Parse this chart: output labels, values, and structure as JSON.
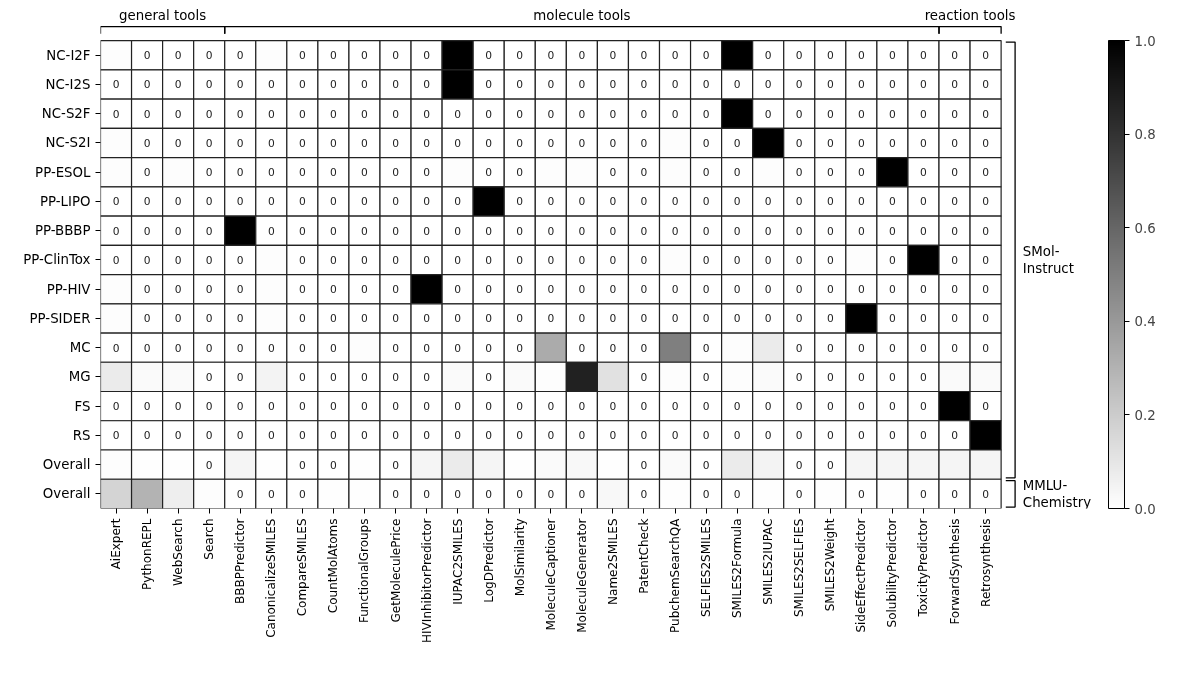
{
  "chart_data": {
    "type": "heatmap",
    "categories": [
      "AiExpert",
      "PythonREPL",
      "WebSearch",
      "Search",
      "BBBPPredictor",
      "CanonicalizeSMILES",
      "CompareSMILES",
      "CountMolAtoms",
      "FunctionalGroups",
      "GetMoleculePrice",
      "HIVInhibitorPredictor",
      "IUPAC2SMILES",
      "LogDPredictor",
      "MolSimilarity",
      "MoleculeCaptioner",
      "MoleculeGenerator",
      "Name2SMILES",
      "PatentCheck",
      "PubchemSearchQA",
      "SELFIES2SMILES",
      "SMILES2Formula",
      "SMILES2IUPAC",
      "SMILES2SELFIES",
      "SMILES2Weight",
      "SideEffectPredictor",
      "SolubilityPredictor",
      "ToxicityPredictor",
      "ForwardSynthesis",
      "Retrosynthesis"
    ],
    "y_categories": [
      "NC-I2F",
      "NC-I2S",
      "NC-S2F",
      "NC-S2I",
      "PP-ESOL",
      "PP-LIPO",
      "PP-BBBP",
      "PP-ClinTox",
      "PP-HIV",
      "PP-SIDER",
      "MC",
      "MG",
      "FS",
      "RS",
      "Overall",
      "Overall"
    ],
    "cells": [
      [
        0.01,
        0,
        0,
        0,
        0,
        0.01,
        0,
        0,
        0,
        0,
        0,
        1,
        0,
        0,
        0,
        0,
        0,
        0,
        0,
        0,
        1,
        0,
        0,
        0,
        0,
        0,
        0,
        0,
        0
      ],
      [
        0,
        0,
        0,
        0,
        0,
        0,
        0,
        0,
        0,
        0,
        0,
        1,
        0,
        0,
        0,
        0,
        0,
        0,
        0,
        0,
        0,
        0,
        0,
        0,
        0,
        0,
        0,
        0,
        0
      ],
      [
        0,
        0,
        0,
        0,
        0,
        0,
        0,
        0,
        0,
        0,
        0,
        0,
        0,
        0,
        0,
        0,
        0,
        0,
        0,
        0,
        1,
        0,
        0,
        0,
        0,
        0,
        0,
        0,
        0
      ],
      [
        0.01,
        0,
        0,
        0,
        0,
        0,
        0,
        0,
        0,
        0,
        0,
        0,
        0,
        0,
        0,
        0,
        0,
        0,
        0.01,
        0,
        0,
        1,
        0,
        0,
        0,
        0,
        0,
        0,
        0
      ],
      [
        0.01,
        0,
        0.01,
        0,
        0,
        0,
        0,
        0,
        0,
        0,
        0,
        0.01,
        0,
        0,
        0.01,
        0.01,
        0,
        0,
        0.01,
        0,
        0,
        0.01,
        0,
        0,
        0,
        1,
        0,
        0,
        0
      ],
      [
        0,
        0,
        0,
        0,
        0,
        0,
        0,
        0,
        0,
        0,
        0,
        0,
        1,
        0,
        0,
        0,
        0,
        0,
        0,
        0,
        0,
        0,
        0,
        0,
        0,
        0,
        0,
        0,
        0
      ],
      [
        0,
        0,
        0,
        0,
        1,
        0,
        0,
        0,
        0,
        0,
        0,
        0,
        0,
        0,
        0,
        0,
        0,
        0,
        0,
        0,
        0,
        0,
        0,
        0,
        0,
        0,
        0,
        0,
        0
      ],
      [
        0,
        0,
        0,
        0,
        0,
        0.01,
        0,
        0,
        0,
        0,
        0,
        0,
        0,
        0,
        0,
        0,
        0,
        0,
        0.01,
        0,
        0,
        0,
        0,
        0,
        0.01,
        0,
        1,
        0,
        0
      ],
      [
        0.01,
        0,
        0,
        0,
        0,
        0.01,
        0,
        0,
        0,
        0,
        1,
        0,
        0,
        0,
        0,
        0,
        0,
        0,
        0,
        0,
        0,
        0,
        0,
        0,
        0,
        0,
        0,
        0,
        0
      ],
      [
        0.01,
        0,
        0,
        0,
        0,
        0.01,
        0,
        0,
        0,
        0,
        0,
        0,
        0,
        0,
        0,
        0,
        0,
        0,
        0,
        0,
        0,
        0,
        0,
        0,
        1,
        0,
        0,
        0,
        0
      ],
      [
        0,
        0,
        0,
        0,
        0,
        0,
        0,
        0,
        0.01,
        0,
        0,
        0,
        0,
        0,
        0.33,
        0,
        0,
        0,
        0.5,
        0,
        0.01,
        0.08,
        0,
        0,
        0,
        0,
        0,
        0,
        0
      ],
      [
        0.08,
        0.02,
        0.02,
        0,
        0,
        0.05,
        0,
        0,
        0,
        0,
        0,
        0.02,
        0,
        0.02,
        0.01,
        0.87,
        0.12,
        0,
        0.01,
        0,
        0.01,
        0.02,
        0,
        0,
        0,
        0,
        0,
        0.02,
        0.02
      ],
      [
        0,
        0,
        0,
        0,
        0,
        0,
        0,
        0,
        0,
        0,
        0,
        0,
        0,
        0,
        0,
        0,
        0,
        0,
        0,
        0,
        0,
        0,
        0,
        0,
        0,
        0,
        0,
        1,
        0
      ],
      [
        0,
        0,
        0,
        0,
        0,
        0,
        0,
        0,
        0,
        0,
        0,
        0,
        0,
        0,
        0,
        0,
        0,
        0,
        0,
        0,
        0,
        0,
        0,
        0,
        0,
        0,
        0,
        0,
        1
      ],
      [
        0.01,
        0.005,
        0.005,
        0,
        0.04,
        0.005,
        0,
        0,
        0.005,
        0,
        0.04,
        0.08,
        0.04,
        0.005,
        0.02,
        0.03,
        0.005,
        0,
        0.02,
        0,
        0.08,
        0.05,
        0,
        0,
        0.04,
        0.04,
        0.04,
        0.04,
        0.04
      ],
      [
        0.17,
        0.3,
        0.07,
        0.01,
        0,
        0,
        0,
        0.005,
        0.005,
        0,
        0,
        0,
        0,
        0,
        0,
        0,
        0.03,
        0,
        0.005,
        0,
        0,
        0.005,
        0,
        0.005,
        0,
        0.005,
        0,
        0,
        0
      ]
    ],
    "cell_labels": [
      [
        null,
        "0",
        "0",
        "0",
        "0",
        null,
        "0",
        "0",
        "0",
        "0",
        "0",
        null,
        "0",
        "0",
        "0",
        "0",
        "0",
        "0",
        "0",
        "0",
        null,
        "0",
        "0",
        "0",
        "0",
        "0",
        "0",
        "0",
        "0"
      ],
      [
        "0",
        "0",
        "0",
        "0",
        "0",
        "0",
        "0",
        "0",
        "0",
        "0",
        "0",
        null,
        "0",
        "0",
        "0",
        "0",
        "0",
        "0",
        "0",
        "0",
        "0",
        "0",
        "0",
        "0",
        "0",
        "0",
        "0",
        "0",
        "0"
      ],
      [
        "0",
        "0",
        "0",
        "0",
        "0",
        "0",
        "0",
        "0",
        "0",
        "0",
        "0",
        "0",
        "0",
        "0",
        "0",
        "0",
        "0",
        "0",
        "0",
        "0",
        null,
        "0",
        "0",
        "0",
        "0",
        "0",
        "0",
        "0",
        "0"
      ],
      [
        null,
        "0",
        "0",
        "0",
        "0",
        "0",
        "0",
        "0",
        "0",
        "0",
        "0",
        "0",
        "0",
        "0",
        "0",
        "0",
        "0",
        "0",
        null,
        "0",
        "0",
        null,
        "0",
        "0",
        "0",
        "0",
        "0",
        "0",
        "0"
      ],
      [
        null,
        "0",
        null,
        "0",
        "0",
        "0",
        "0",
        "0",
        "0",
        "0",
        "0",
        null,
        "0",
        "0",
        null,
        null,
        "0",
        "0",
        null,
        "0",
        "0",
        null,
        "0",
        "0",
        "0",
        null,
        "0",
        "0",
        "0"
      ],
      [
        "0",
        "0",
        "0",
        "0",
        "0",
        "0",
        "0",
        "0",
        "0",
        "0",
        "0",
        "0",
        null,
        "0",
        "0",
        "0",
        "0",
        "0",
        "0",
        "0",
        "0",
        "0",
        "0",
        "0",
        "0",
        "0",
        "0",
        "0",
        "0"
      ],
      [
        "0",
        "0",
        "0",
        "0",
        null,
        "0",
        "0",
        "0",
        "0",
        "0",
        "0",
        "0",
        "0",
        "0",
        "0",
        "0",
        "0",
        "0",
        "0",
        "0",
        "0",
        "0",
        "0",
        "0",
        "0",
        "0",
        "0",
        "0",
        "0"
      ],
      [
        "0",
        "0",
        "0",
        "0",
        "0",
        null,
        "0",
        "0",
        "0",
        "0",
        "0",
        "0",
        "0",
        "0",
        "0",
        "0",
        "0",
        "0",
        null,
        "0",
        "0",
        "0",
        "0",
        "0",
        null,
        "0",
        null,
        "0",
        "0"
      ],
      [
        null,
        "0",
        "0",
        "0",
        "0",
        null,
        "0",
        "0",
        "0",
        "0",
        null,
        "0",
        "0",
        "0",
        "0",
        "0",
        "0",
        "0",
        "0",
        "0",
        "0",
        "0",
        "0",
        "0",
        "0",
        "0",
        "0",
        "0",
        "0"
      ],
      [
        null,
        "0",
        "0",
        "0",
        "0",
        null,
        "0",
        "0",
        "0",
        "0",
        "0",
        "0",
        "0",
        "0",
        "0",
        "0",
        "0",
        "0",
        "0",
        "0",
        "0",
        "0",
        "0",
        "0",
        null,
        "0",
        "0",
        "0",
        "0"
      ],
      [
        "0",
        "0",
        "0",
        "0",
        "0",
        "0",
        "0",
        "0",
        null,
        "0",
        "0",
        "0",
        "0",
        "0",
        null,
        "0",
        "0",
        "0",
        null,
        "0",
        null,
        null,
        "0",
        "0",
        "0",
        "0",
        "0",
        "0",
        "0"
      ],
      [
        null,
        null,
        null,
        "0",
        "0",
        null,
        "0",
        "0",
        "0",
        "0",
        "0",
        null,
        "0",
        null,
        null,
        null,
        null,
        "0",
        null,
        "0",
        null,
        null,
        "0",
        "0",
        "0",
        "0",
        "0",
        null,
        null
      ],
      [
        "0",
        "0",
        "0",
        "0",
        "0",
        "0",
        "0",
        "0",
        "0",
        "0",
        "0",
        "0",
        "0",
        "0",
        "0",
        "0",
        "0",
        "0",
        "0",
        "0",
        "0",
        "0",
        "0",
        "0",
        "0",
        "0",
        "0",
        null,
        "0"
      ],
      [
        "0",
        "0",
        "0",
        "0",
        "0",
        "0",
        "0",
        "0",
        "0",
        "0",
        "0",
        "0",
        "0",
        "0",
        "0",
        "0",
        "0",
        "0",
        "0",
        "0",
        "0",
        "0",
        "0",
        "0",
        "0",
        "0",
        "0",
        "0",
        null
      ],
      [
        null,
        null,
        null,
        "0",
        null,
        null,
        "0",
        "0",
        null,
        "0",
        null,
        null,
        null,
        null,
        null,
        null,
        null,
        "0",
        null,
        "0",
        null,
        null,
        "0",
        "0",
        null,
        null,
        null,
        null,
        null
      ],
      [
        null,
        null,
        null,
        null,
        "0",
        "0",
        "0",
        null,
        null,
        "0",
        "0",
        "0",
        "0",
        "0",
        "0",
        "0",
        null,
        "0",
        null,
        "0",
        "0",
        null,
        "0",
        null,
        "0",
        null,
        "0",
        "0",
        "0"
      ]
    ],
    "clim": [
      0,
      1
    ],
    "cticks": [
      {
        "value": 0,
        "label": "0.0"
      },
      {
        "value": 0.2,
        "label": "0.2"
      },
      {
        "value": 0.4,
        "label": "0.4"
      },
      {
        "value": 0.6,
        "label": "0.6"
      },
      {
        "value": 0.8,
        "label": "0.8"
      },
      {
        "value": 1,
        "label": "1.0"
      }
    ],
    "annotations": [
      "general tools",
      "molecule tools",
      "reaction tools",
      "SMol-Instruct",
      "MMLU-Chemistry"
    ],
    "grid": false
  }
}
